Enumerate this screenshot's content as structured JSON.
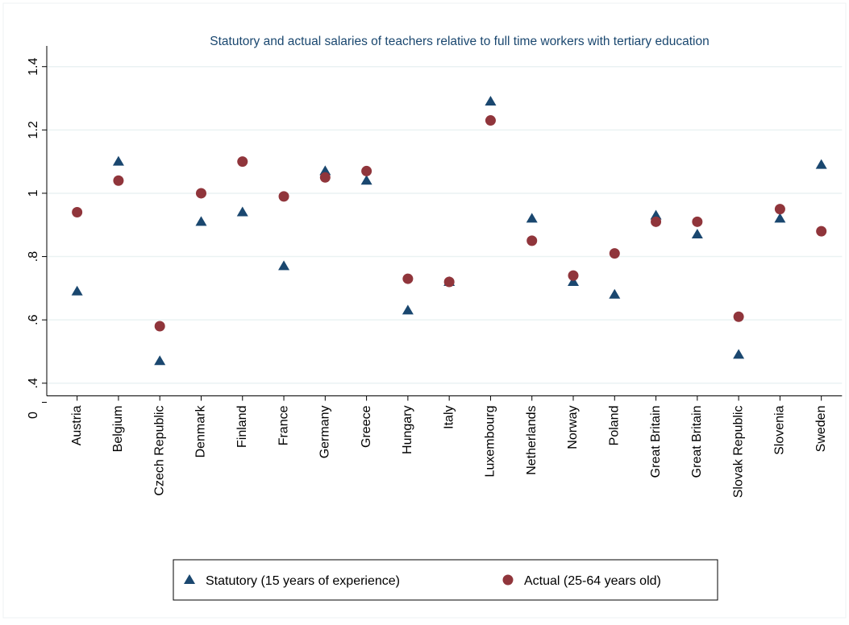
{
  "chart_data": {
    "type": "scatter",
    "title": "Statutory and actual salaries of teachers relative to full time workers with tertiary education",
    "categories": [
      "Austria",
      "Belgium",
      "Czech Republic",
      "Denmark",
      "Finland",
      "France",
      "Germany",
      "Greece",
      "Hungary",
      "Italy",
      "Luxembourg",
      "Netherlands",
      "Norway",
      "Poland",
      "Great Britain",
      "Great Britain",
      "Slovak Republic",
      "Slovenia",
      "Sweden"
    ],
    "series": [
      {
        "name": "Statutory (15 years of experience)",
        "color": "#1a476f",
        "marker": "triangle",
        "values": [
          0.69,
          1.1,
          0.47,
          0.91,
          0.94,
          0.77,
          1.07,
          1.04,
          0.63,
          0.72,
          1.29,
          0.92,
          0.72,
          0.68,
          0.93,
          0.87,
          0.49,
          0.92,
          1.09
        ]
      },
      {
        "name": "Actual (25-64 years old)",
        "color": "#90353b",
        "marker": "circle",
        "values": [
          0.94,
          1.04,
          0.58,
          1.0,
          1.1,
          0.99,
          1.05,
          1.07,
          0.73,
          0.72,
          1.23,
          0.85,
          0.74,
          0.81,
          0.91,
          0.91,
          0.61,
          0.95,
          0.88
        ]
      }
    ],
    "ylim": [
      0.36,
      1.44
    ],
    "yticks": [
      {
        "value": 0.4,
        "label": ".4"
      },
      {
        "value": 0.6,
        "label": ".6"
      },
      {
        "value": 0.8,
        "label": ".8"
      },
      1,
      1.2,
      1.4
    ],
    "y_axis_origin_label": "0",
    "grid": true
  }
}
